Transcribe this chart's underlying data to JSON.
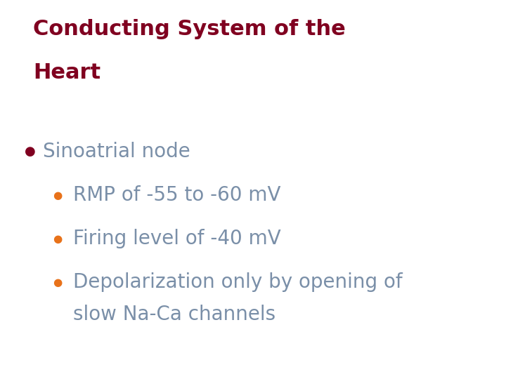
{
  "title_line1": "Conducting System of the",
  "title_line2": "Heart",
  "title_color": "#800020",
  "title_fontsize": 22,
  "background_color": "#FFFFFF",
  "bullet1_text": "Sinoatrial node",
  "bullet1_color": "#7A8FA8",
  "bullet1_dot_color": "#800020",
  "bullet1_fontsize": 20,
  "sub_bullet_dot_color": "#E8721A",
  "sub_bullet_color": "#7A8FA8",
  "sub_bullet_fontsize": 20,
  "sub_bullet1": "RMP of -55 to -60 mV",
  "sub_bullet2": "Firing level of -40 mV",
  "sub_bullet3a": "Depolarization only by opening of",
  "sub_bullet3b": "slow Na-Ca channels"
}
